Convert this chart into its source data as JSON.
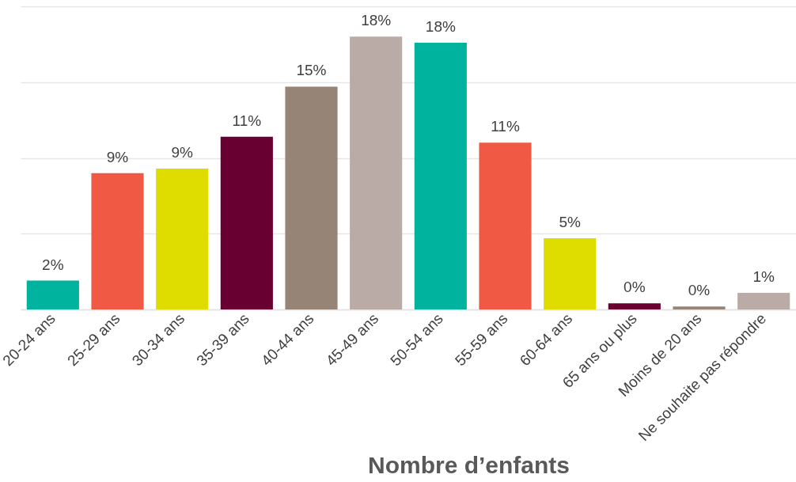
{
  "chart_data": {
    "type": "bar",
    "categories": [
      "20-24 ans",
      "25-29 ans",
      "30-34 ans",
      "35-39 ans",
      "40-44 ans",
      "45-49 ans",
      "50-54 ans",
      "55-59 ans",
      "60-64 ans",
      "65 ans ou plus",
      "Moins de 20 ans",
      "Ne souhaite pas répondre"
    ],
    "values": [
      1.9,
      9.0,
      9.3,
      11.4,
      14.7,
      18.0,
      17.6,
      11.0,
      4.7,
      0.4,
      0.2,
      1.1
    ],
    "value_labels": [
      "2%",
      "9%",
      "9%",
      "11%",
      "15%",
      "18%",
      "18%",
      "11%",
      "5%",
      "0%",
      "0%",
      "1%"
    ],
    "colors": [
      "#00b39e",
      "#f05a44",
      "#dfdd00",
      "#690032",
      "#968477",
      "#bbaba7",
      "#00b39e",
      "#f05a44",
      "#dfdd00",
      "#690032",
      "#968477",
      "#bbaba7"
    ],
    "xlabel": "Nombre d’enfants",
    "ylim": [
      0,
      20
    ],
    "yticks": [
      {
        "value": 0,
        "label": null
      },
      {
        "value": 5,
        "label": null
      },
      {
        "value": 10,
        "label": null
      },
      {
        "value": 15,
        "label": null
      },
      {
        "value": 20,
        "label": null
      }
    ],
    "grid": "y",
    "tick_labels": "x"
  }
}
